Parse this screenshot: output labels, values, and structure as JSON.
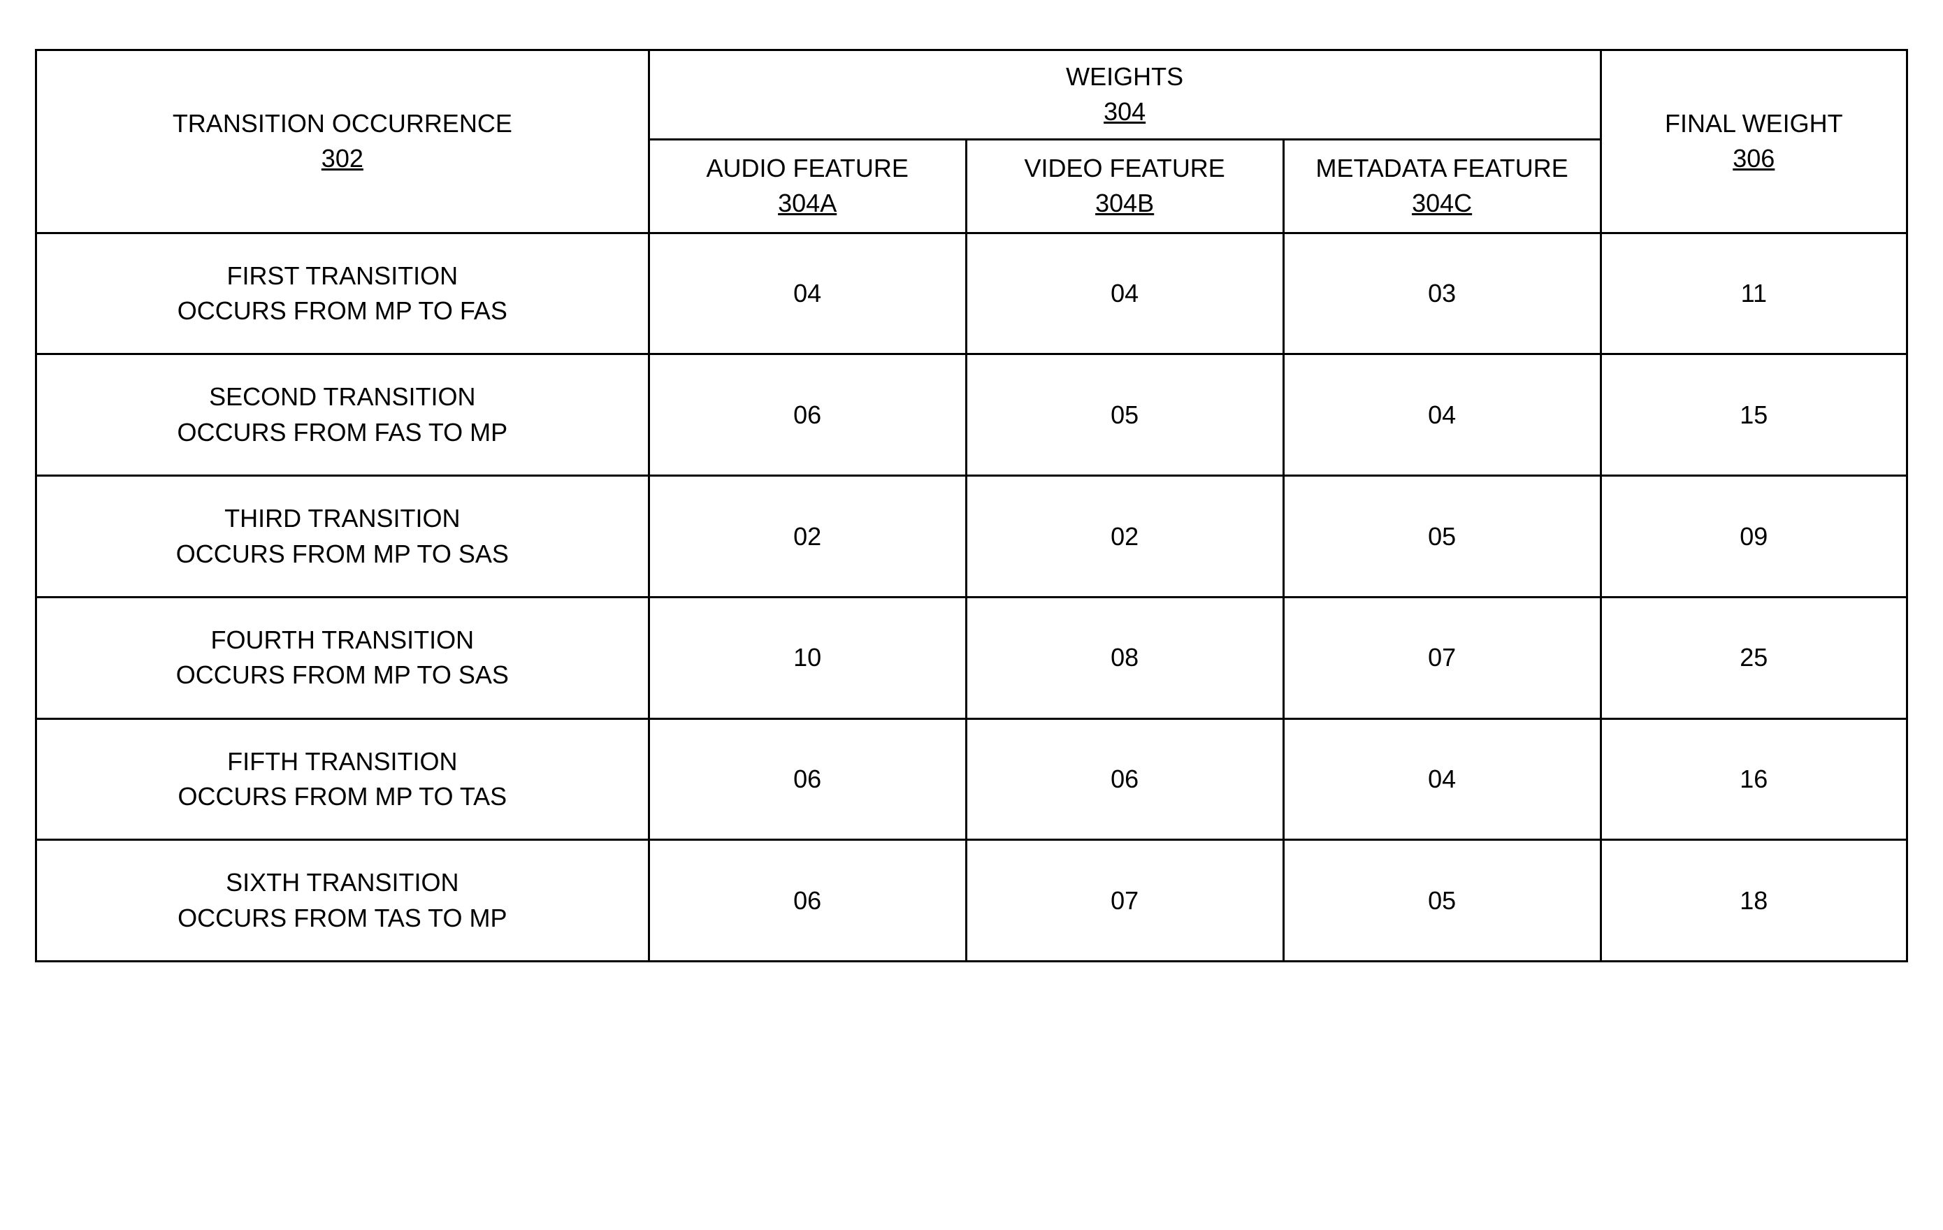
{
  "table": {
    "type": "table",
    "background_color": "#ffffff",
    "border_color": "#000000",
    "border_width": 3,
    "text_color": "#000000",
    "font_size": 36,
    "headers": {
      "transition": {
        "label": "TRANSITION OCCURRENCE",
        "ref": "302"
      },
      "weights": {
        "label": "WEIGHTS",
        "ref": "304"
      },
      "audio": {
        "label": "AUDIO FEATURE",
        "ref": "304A"
      },
      "video": {
        "label": "VIDEO FEATURE",
        "ref": "304B"
      },
      "metadata": {
        "label": "METADATA FEATURE",
        "ref": "304C"
      },
      "final": {
        "label": "FINAL WEIGHT",
        "ref": "306"
      }
    },
    "rows": [
      {
        "transition_line1": "FIRST TRANSITION",
        "transition_line2": "OCCURS FROM MP TO FAS",
        "audio": "04",
        "video": "04",
        "metadata": "03",
        "final": "11"
      },
      {
        "transition_line1": "SECOND TRANSITION",
        "transition_line2": "OCCURS FROM FAS TO MP",
        "audio": "06",
        "video": "05",
        "metadata": "04",
        "final": "15"
      },
      {
        "transition_line1": "THIRD TRANSITION",
        "transition_line2": "OCCURS FROM MP TO SAS",
        "audio": "02",
        "video": "02",
        "metadata": "05",
        "final": "09"
      },
      {
        "transition_line1": "FOURTH TRANSITION",
        "transition_line2": "OCCURS FROM MP TO SAS",
        "audio": "10",
        "video": "08",
        "metadata": "07",
        "final": "25"
      },
      {
        "transition_line1": "FIFTH TRANSITION",
        "transition_line2": "OCCURS FROM MP TO TAS",
        "audio": "06",
        "video": "06",
        "metadata": "04",
        "final": "16"
      },
      {
        "transition_line1": "SIXTH TRANSITION",
        "transition_line2": "OCCURS FROM TAS TO MP",
        "audio": "06",
        "video": "07",
        "metadata": "05",
        "final": "18"
      }
    ],
    "column_widths": {
      "transition": "28%",
      "feature": "14.5%",
      "final": "14%"
    }
  }
}
